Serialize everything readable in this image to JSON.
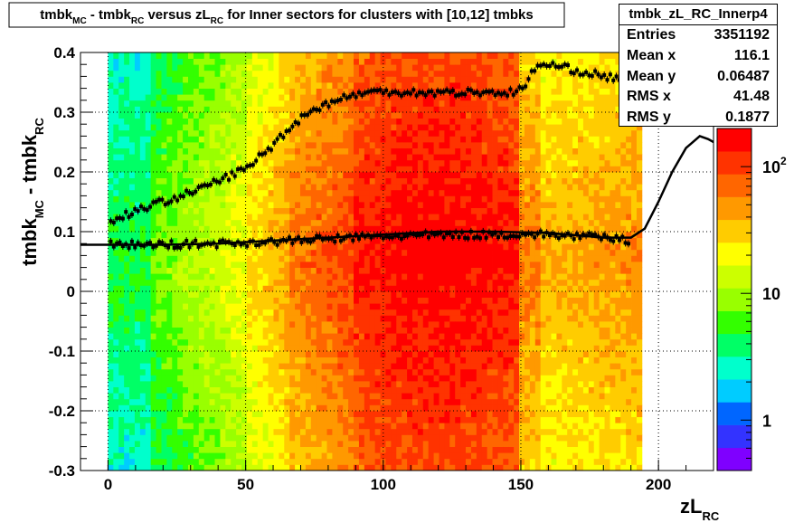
{
  "title": {
    "parts": [
      "tmbk",
      "MC",
      " - tmbk",
      "RC",
      " versus zL",
      "RC",
      " for Inner sectors for clusters with [10,12] tmbks"
    ]
  },
  "stats": {
    "name": "tmbk_zL_RC_Innerp4",
    "rows": [
      {
        "label": "Entries",
        "value": "3351192"
      },
      {
        "label": "Mean x",
        "value": "116.1"
      },
      {
        "label": "Mean y",
        "value": "0.06487"
      },
      {
        "label": "RMS x",
        "value": "41.48"
      },
      {
        "label": "RMS y",
        "value": "0.1877"
      }
    ]
  },
  "axes": {
    "xlabel": "zL",
    "xlabel_sub": "RC",
    "ylabel": "tmbk",
    "ylabel_sub1": "MC",
    "ylabel_mid": " - tmbk",
    "ylabel_sub2": "RC",
    "x_ticks": [
      "0",
      "50",
      "100",
      "150",
      "200"
    ],
    "y_ticks": [
      "-0.3",
      "-0.2",
      "-0.1",
      "0",
      "0.1",
      "0.2",
      "0.3",
      "0.4"
    ],
    "z_ticks": [
      {
        "base": "1",
        "exp": ""
      },
      {
        "base": "10",
        "exp": ""
      },
      {
        "base": "10",
        "exp": "2"
      }
    ]
  },
  "colors": {
    "palette": [
      "#7f00ff",
      "#3333ff",
      "#0066ff",
      "#00ccff",
      "#00ffcc",
      "#00ff66",
      "#33ff00",
      "#99ff00",
      "#ccff00",
      "#ffff00",
      "#ffcc00",
      "#ff9900",
      "#ff6600",
      "#ff3300",
      "#ff0000"
    ],
    "markers": "#000000",
    "fit_line": "#000000"
  },
  "chart_data": {
    "type": "heatmap",
    "xlim": [
      -10,
      220
    ],
    "ylim": [
      -0.3,
      0.4
    ],
    "zlim_log": [
      0.4,
      200
    ],
    "grid": true,
    "log_z": true,
    "upper_profile": {
      "x": [
        0,
        10,
        20,
        30,
        40,
        50,
        55,
        60,
        65,
        70,
        75,
        80,
        90,
        100,
        110,
        120,
        130,
        140,
        148,
        152,
        155,
        160,
        170,
        180,
        190
      ],
      "y": [
        0.115,
        0.135,
        0.15,
        0.165,
        0.185,
        0.205,
        0.225,
        0.245,
        0.27,
        0.29,
        0.305,
        0.315,
        0.33,
        0.335,
        0.333,
        0.333,
        0.333,
        0.333,
        0.333,
        0.345,
        0.375,
        0.38,
        0.37,
        0.36,
        0.355
      ]
    },
    "lower_profile": {
      "x": [
        0,
        20,
        40,
        60,
        80,
        100,
        120,
        140,
        160,
        180,
        190
      ],
      "y": [
        0.078,
        0.078,
        0.08,
        0.083,
        0.088,
        0.092,
        0.094,
        0.095,
        0.095,
        0.09,
        0.085
      ]
    },
    "fit_curve": {
      "x": [
        -10,
        0,
        20,
        40,
        60,
        80,
        100,
        120,
        140,
        160,
        180,
        190,
        195,
        200,
        205,
        210,
        215,
        218,
        220
      ],
      "y": [
        0.078,
        0.078,
        0.078,
        0.08,
        0.085,
        0.09,
        0.095,
        0.1,
        0.1,
        0.098,
        0.09,
        0.09,
        0.105,
        0.15,
        0.2,
        0.24,
        0.26,
        0.255,
        0.25
      ]
    }
  }
}
